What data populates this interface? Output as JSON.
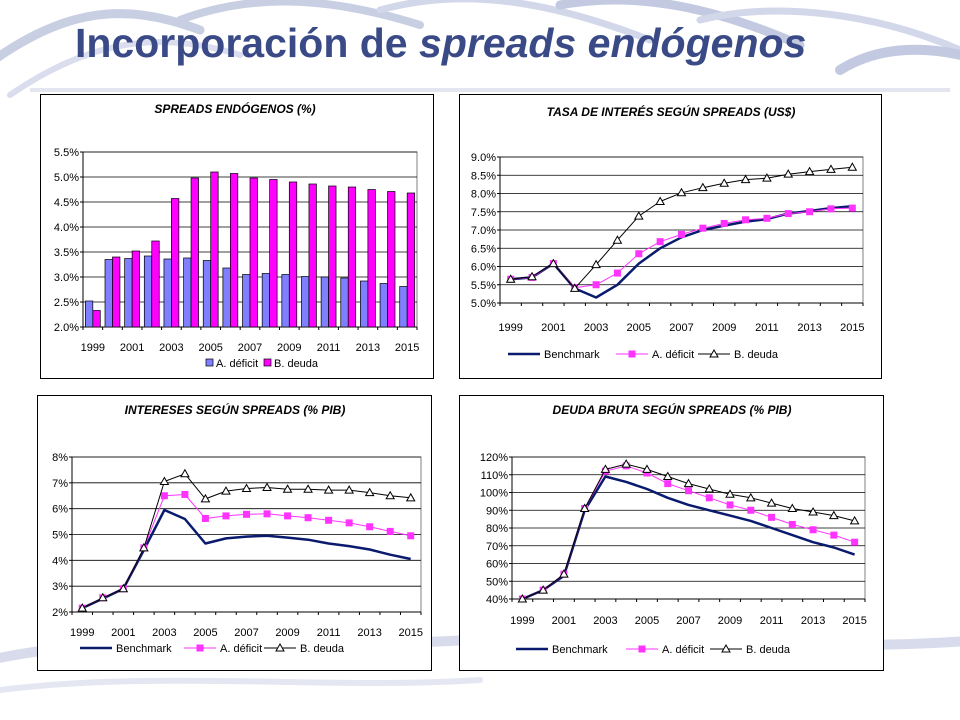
{
  "slide": {
    "title_plain": "Incorporación de",
    "title_italic": "spreads endógenos"
  },
  "colors": {
    "title": "#3a4a86",
    "benchmark": "#0a1a6e",
    "deficit": "#ff33ff",
    "bar_a": "#7f7fff",
    "bar_b": "#ff00ff",
    "deuda_marker": "#000000"
  },
  "chart_data": [
    {
      "id": "spreads",
      "type": "bar",
      "title": "SPREADS ENDÓGENOS (%)",
      "categories": [
        "1999",
        "2000",
        "2001",
        "2002",
        "2003",
        "2004",
        "2005",
        "2006",
        "2007",
        "2008",
        "2009",
        "2010",
        "2011",
        "2012",
        "2013",
        "2014",
        "2015"
      ],
      "x_tick_labels": [
        "1999",
        "2001",
        "2003",
        "2005",
        "2007",
        "2009",
        "2011",
        "2013",
        "2015"
      ],
      "ylim": [
        2.0,
        5.5
      ],
      "yticks": [
        2.0,
        2.5,
        3.0,
        3.5,
        4.0,
        4.5,
        5.0,
        5.5
      ],
      "y_tick_labels": [
        "2.0%",
        "2.5%",
        "3.0%",
        "3.5%",
        "4.0%",
        "4.5%",
        "5.0%",
        "5.5%"
      ],
      "grid": true,
      "legend_position": "bottom",
      "series": [
        {
          "name": "A. déficit",
          "values": [
            2.52,
            3.35,
            3.37,
            3.42,
            3.36,
            3.38,
            3.33,
            3.18,
            3.05,
            3.07,
            3.05,
            3.01,
            3.0,
            2.98,
            2.92,
            2.87,
            2.81
          ]
        },
        {
          "name": "B. deuda",
          "values": [
            2.33,
            3.4,
            3.52,
            3.72,
            4.57,
            4.98,
            5.1,
            5.07,
            4.98,
            4.95,
            4.9,
            4.86,
            4.82,
            4.8,
            4.75,
            4.71,
            4.68
          ]
        }
      ]
    },
    {
      "id": "tasa",
      "type": "line",
      "title": "TASA DE INTERÉS SEGÚN SPREADS (US$)",
      "x": [
        1999,
        2000,
        2001,
        2002,
        2003,
        2004,
        2005,
        2006,
        2007,
        2008,
        2009,
        2010,
        2011,
        2012,
        2013,
        2014,
        2015
      ],
      "x_tick_labels": [
        "1999",
        "2001",
        "2003",
        "2005",
        "2007",
        "2009",
        "2011",
        "2013",
        "2015"
      ],
      "ylim": [
        5.0,
        9.0
      ],
      "yticks": [
        5.0,
        5.5,
        6.0,
        6.5,
        7.0,
        7.5,
        8.0,
        8.5,
        9.0
      ],
      "y_tick_labels": [
        "5.0%",
        "5.5%",
        "6.0%",
        "6.5%",
        "7.0%",
        "7.5%",
        "8.0%",
        "8.5%",
        "9.0%"
      ],
      "grid": true,
      "legend_position": "bottom",
      "series": [
        {
          "name": "Benchmark",
          "values": [
            5.65,
            5.7,
            6.08,
            5.4,
            5.15,
            5.5,
            6.08,
            6.5,
            6.8,
            7.0,
            7.12,
            7.23,
            7.3,
            7.45,
            7.52,
            7.6,
            7.65
          ]
        },
        {
          "name": "A. déficit",
          "values": [
            5.65,
            5.7,
            6.08,
            5.42,
            5.5,
            5.82,
            6.35,
            6.68,
            6.88,
            7.05,
            7.18,
            7.28,
            7.32,
            7.45,
            7.5,
            7.58,
            7.6
          ]
        },
        {
          "name": "B. deuda",
          "values": [
            5.65,
            5.72,
            6.08,
            5.4,
            6.05,
            6.72,
            7.38,
            7.78,
            8.02,
            8.16,
            8.28,
            8.38,
            8.42,
            8.53,
            8.6,
            8.66,
            8.72
          ]
        }
      ]
    },
    {
      "id": "intereses",
      "type": "line",
      "title": "INTERESES SEGÚN SPREADS (% PIB)",
      "x": [
        1999,
        2000,
        2001,
        2002,
        2003,
        2004,
        2005,
        2006,
        2007,
        2008,
        2009,
        2010,
        2011,
        2012,
        2013,
        2014,
        2015
      ],
      "x_tick_labels": [
        "1999",
        "2001",
        "2003",
        "2005",
        "2007",
        "2009",
        "2011",
        "2013",
        "2015"
      ],
      "ylim": [
        2,
        8
      ],
      "yticks": [
        2,
        3,
        4,
        5,
        6,
        7,
        8
      ],
      "y_tick_labels": [
        "2%",
        "3%",
        "4%",
        "5%",
        "6%",
        "7%",
        "8%"
      ],
      "grid": true,
      "legend_position": "bottom",
      "series": [
        {
          "name": "Benchmark",
          "values": [
            2.15,
            2.52,
            2.9,
            4.4,
            5.95,
            5.6,
            4.65,
            4.85,
            4.92,
            4.95,
            4.88,
            4.8,
            4.65,
            4.55,
            4.42,
            4.22,
            4.05
          ]
        },
        {
          "name": "A. déficit",
          "values": [
            2.15,
            2.55,
            2.9,
            4.48,
            6.5,
            6.55,
            5.62,
            5.72,
            5.78,
            5.8,
            5.72,
            5.65,
            5.55,
            5.45,
            5.3,
            5.12,
            4.95
          ]
        },
        {
          "name": "B. deuda",
          "values": [
            2.15,
            2.55,
            2.9,
            4.48,
            7.05,
            7.35,
            6.38,
            6.68,
            6.78,
            6.82,
            6.75,
            6.75,
            6.72,
            6.72,
            6.62,
            6.5,
            6.42
          ]
        }
      ]
    },
    {
      "id": "deuda",
      "type": "line",
      "title": "DEUDA BRUTA SEGÚN SPREADS (% PIB)",
      "x": [
        1999,
        2000,
        2001,
        2002,
        2003,
        2004,
        2005,
        2006,
        2007,
        2008,
        2009,
        2010,
        2011,
        2012,
        2013,
        2014,
        2015
      ],
      "x_tick_labels": [
        "1999",
        "2001",
        "2003",
        "2005",
        "2007",
        "2009",
        "2011",
        "2013",
        "2015"
      ],
      "ylim": [
        40,
        120
      ],
      "yticks": [
        40,
        50,
        60,
        70,
        80,
        90,
        100,
        110,
        120
      ],
      "y_tick_labels": [
        "40%",
        "50%",
        "60%",
        "70%",
        "80%",
        "90%",
        "100%",
        "110%",
        "120%"
      ],
      "grid": true,
      "legend_position": "bottom",
      "series": [
        {
          "name": "Benchmark",
          "values": [
            40,
            45,
            53,
            90,
            109,
            106,
            102,
            97,
            93,
            90,
            87,
            84,
            80,
            76,
            72,
            69,
            65
          ]
        },
        {
          "name": "A. déficit",
          "values": [
            40,
            45,
            54,
            91,
            112,
            115,
            111,
            105,
            101,
            97,
            93,
            90,
            86,
            82,
            79,
            76,
            72
          ]
        },
        {
          "name": "B. deuda",
          "values": [
            40,
            45,
            54,
            91,
            113,
            116,
            113,
            109,
            105,
            102,
            99,
            97,
            94,
            91,
            89,
            87,
            84
          ]
        }
      ]
    }
  ]
}
